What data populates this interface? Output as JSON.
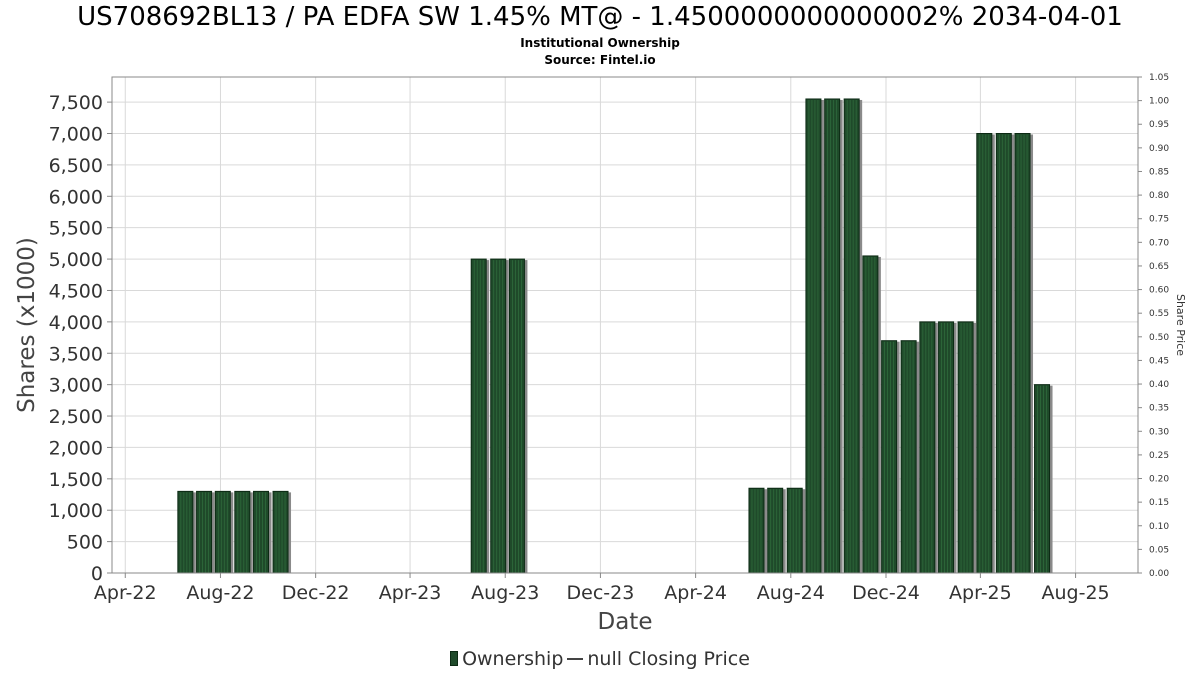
{
  "header": {
    "title": "US708692BL13 / PA EDFA SW 1.45% MT@ - 1.4500000000000002% 2034-04-01",
    "subtitle": "Institutional Ownership",
    "source": "Source: Fintel.io"
  },
  "legend": {
    "ownership": "Ownership",
    "price": "null Closing Price"
  },
  "colors": {
    "bar": "#1f4a2a",
    "bar_shadow": "#8a8a8a",
    "grid": "#d9d9d9",
    "axis": "#888888"
  },
  "chart_data": {
    "type": "bar",
    "xlabel": "Date",
    "ylabel": "Shares (x1000)",
    "y2label": "Share Price",
    "ylim": [
      0,
      7900
    ],
    "y2lim": [
      0,
      1.05
    ],
    "yticks": [
      0,
      500,
      1000,
      1500,
      2000,
      2500,
      3000,
      3500,
      4000,
      4500,
      5000,
      5500,
      6000,
      6500,
      7000,
      7500
    ],
    "ytick_labels": [
      "0",
      "500",
      "1,000",
      "1,500",
      "2,000",
      "2,500",
      "3,000",
      "3,500",
      "4,000",
      "4,500",
      "5,000",
      "5,500",
      "6,000",
      "6,500",
      "7,000",
      "7,500"
    ],
    "y2ticks": [
      "0.00",
      "0.05",
      "0.10",
      "0.15",
      "0.20",
      "0.25",
      "0.30",
      "0.35",
      "0.40",
      "0.45",
      "0.50",
      "0.55",
      "0.60",
      "0.65",
      "0.70",
      "0.75",
      "0.80",
      "0.85",
      "0.90",
      "0.95",
      "1.00",
      "1.05"
    ],
    "xlim": [
      "2022-03-15",
      "2025-10-20"
    ],
    "xticks": [
      {
        "label": "Apr-22",
        "date": "2022-04-01"
      },
      {
        "label": "Aug-22",
        "date": "2022-08-01"
      },
      {
        "label": "Dec-22",
        "date": "2022-12-01"
      },
      {
        "label": "Apr-23",
        "date": "2023-04-01"
      },
      {
        "label": "Aug-23",
        "date": "2023-08-01"
      },
      {
        "label": "Dec-23",
        "date": "2023-12-01"
      },
      {
        "label": "Apr-24",
        "date": "2024-04-01"
      },
      {
        "label": "Aug-24",
        "date": "2024-08-01"
      },
      {
        "label": "Dec-24",
        "date": "2024-12-01"
      },
      {
        "label": "Apr-25",
        "date": "2025-04-01"
      },
      {
        "label": "Aug-25",
        "date": "2025-08-01"
      }
    ],
    "grid": true,
    "legend_position": "bottom",
    "series": [
      {
        "name": "Ownership",
        "points": [
          {
            "date": "2022-06-17",
            "value": 1300
          },
          {
            "date": "2022-07-11",
            "value": 1300
          },
          {
            "date": "2022-08-04",
            "value": 1300
          },
          {
            "date": "2022-08-29",
            "value": 1300
          },
          {
            "date": "2022-09-22",
            "value": 1300
          },
          {
            "date": "2022-10-17",
            "value": 1300
          },
          {
            "date": "2023-06-28",
            "value": 5000
          },
          {
            "date": "2023-07-23",
            "value": 5000
          },
          {
            "date": "2023-08-16",
            "value": 5000
          },
          {
            "date": "2024-06-18",
            "value": 1350
          },
          {
            "date": "2024-07-12",
            "value": 1350
          },
          {
            "date": "2024-08-06",
            "value": 1350
          },
          {
            "date": "2024-08-30",
            "value": 7550
          },
          {
            "date": "2024-09-23",
            "value": 7550
          },
          {
            "date": "2024-10-18",
            "value": 7550
          },
          {
            "date": "2024-11-11",
            "value": 5050
          },
          {
            "date": "2024-12-05",
            "value": 3700
          },
          {
            "date": "2024-12-30",
            "value": 3700
          },
          {
            "date": "2025-01-23",
            "value": 4000
          },
          {
            "date": "2025-02-16",
            "value": 4000
          },
          {
            "date": "2025-03-13",
            "value": 4000
          },
          {
            "date": "2025-04-06",
            "value": 7000
          },
          {
            "date": "2025-05-01",
            "value": 7000
          },
          {
            "date": "2025-05-25",
            "value": 7000
          },
          {
            "date": "2025-06-19",
            "value": 3000
          }
        ]
      }
    ]
  }
}
